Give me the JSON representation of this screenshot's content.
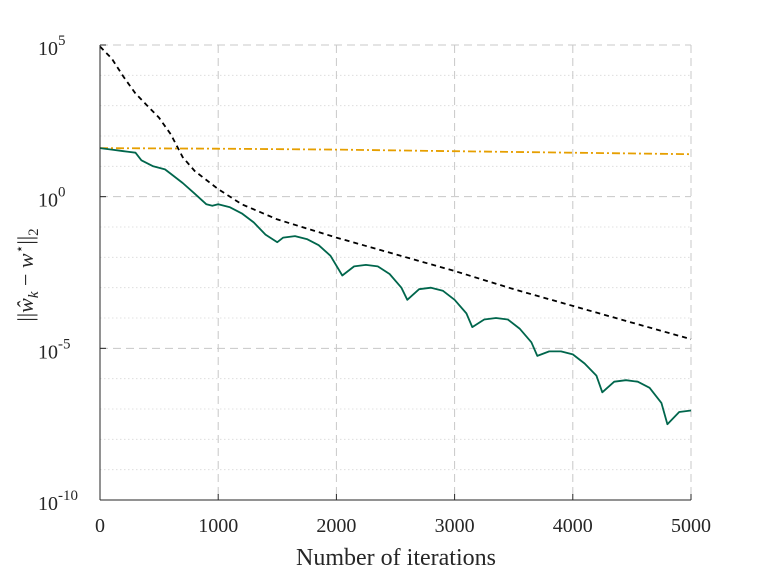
{
  "chart_data": {
    "type": "line",
    "xlabel": "Number of iterations",
    "ylabel": "||ŵk − w*||2",
    "ylabel_parts": {
      "bars_left": "||",
      "w_hat": "ŵ",
      "k": "k",
      "minus": " − ",
      "w": "w",
      "star": "⋆",
      "bars_right": "||",
      "two": "2"
    },
    "xlim": [
      0,
      5000
    ],
    "ylim_log10": [
      -10,
      5
    ],
    "yscale": "log",
    "grid": true,
    "xticks": [
      0,
      1000,
      2000,
      3000,
      4000,
      5000
    ],
    "xtick_labels": [
      "0",
      "1000",
      "2000",
      "3000",
      "4000",
      "5000"
    ],
    "yticks_log10": [
      -10,
      -5,
      0,
      5
    ],
    "ytick_labels": [
      {
        "base": "10",
        "exp": "-10"
      },
      {
        "base": "10",
        "exp": "-5"
      },
      {
        "base": "10",
        "exp": "0"
      },
      {
        "base": "10",
        "exp": "5"
      }
    ],
    "series": [
      {
        "style": "dashed",
        "color": "#000000",
        "points_log10": [
          [
            0,
            4.95
          ],
          [
            100,
            4.55
          ],
          [
            200,
            3.95
          ],
          [
            300,
            3.4
          ],
          [
            400,
            3.0
          ],
          [
            500,
            2.6
          ],
          [
            600,
            2.05
          ],
          [
            700,
            1.3
          ],
          [
            800,
            0.85
          ],
          [
            900,
            0.55
          ],
          [
            1000,
            0.25
          ],
          [
            1200,
            -0.25
          ],
          [
            1500,
            -0.75
          ],
          [
            2000,
            -1.35
          ],
          [
            2500,
            -1.9
          ],
          [
            3000,
            -2.45
          ],
          [
            3500,
            -3.05
          ],
          [
            4000,
            -3.6
          ],
          [
            4500,
            -4.15
          ],
          [
            5000,
            -4.7
          ]
        ]
      },
      {
        "style": "dashdot",
        "color": "#E69F00",
        "points_log10": [
          [
            0,
            1.6
          ],
          [
            1000,
            1.58
          ],
          [
            2000,
            1.55
          ],
          [
            3000,
            1.5
          ],
          [
            4000,
            1.45
          ],
          [
            5000,
            1.4
          ]
        ]
      },
      {
        "style": "solid",
        "color": "#00664C",
        "points_log10": [
          [
            0,
            1.6
          ],
          [
            100,
            1.55
          ],
          [
            200,
            1.5
          ],
          [
            300,
            1.45
          ],
          [
            350,
            1.2
          ],
          [
            450,
            1.0
          ],
          [
            550,
            0.9
          ],
          [
            600,
            0.75
          ],
          [
            700,
            0.45
          ],
          [
            800,
            0.1
          ],
          [
            900,
            -0.25
          ],
          [
            950,
            -0.3
          ],
          [
            1000,
            -0.25
          ],
          [
            1100,
            -0.35
          ],
          [
            1200,
            -0.55
          ],
          [
            1300,
            -0.85
          ],
          [
            1400,
            -1.25
          ],
          [
            1500,
            -1.5
          ],
          [
            1550,
            -1.35
          ],
          [
            1650,
            -1.3
          ],
          [
            1750,
            -1.4
          ],
          [
            1850,
            -1.6
          ],
          [
            1950,
            -1.95
          ],
          [
            2050,
            -2.6
          ],
          [
            2150,
            -2.3
          ],
          [
            2250,
            -2.25
          ],
          [
            2350,
            -2.3
          ],
          [
            2450,
            -2.55
          ],
          [
            2550,
            -3.0
          ],
          [
            2600,
            -3.4
          ],
          [
            2700,
            -3.05
          ],
          [
            2800,
            -3.0
          ],
          [
            2900,
            -3.1
          ],
          [
            3000,
            -3.4
          ],
          [
            3100,
            -3.85
          ],
          [
            3150,
            -4.3
          ],
          [
            3250,
            -4.05
          ],
          [
            3350,
            -4.0
          ],
          [
            3450,
            -4.05
          ],
          [
            3550,
            -4.35
          ],
          [
            3650,
            -4.8
          ],
          [
            3700,
            -5.25
          ],
          [
            3800,
            -5.1
          ],
          [
            3900,
            -5.1
          ],
          [
            4000,
            -5.2
          ],
          [
            4100,
            -5.5
          ],
          [
            4200,
            -5.9
          ],
          [
            4250,
            -6.45
          ],
          [
            4350,
            -6.1
          ],
          [
            4450,
            -6.05
          ],
          [
            4550,
            -6.1
          ],
          [
            4650,
            -6.3
          ],
          [
            4750,
            -6.8
          ],
          [
            4800,
            -7.5
          ],
          [
            4900,
            -7.1
          ],
          [
            5000,
            -7.05
          ]
        ]
      }
    ]
  }
}
